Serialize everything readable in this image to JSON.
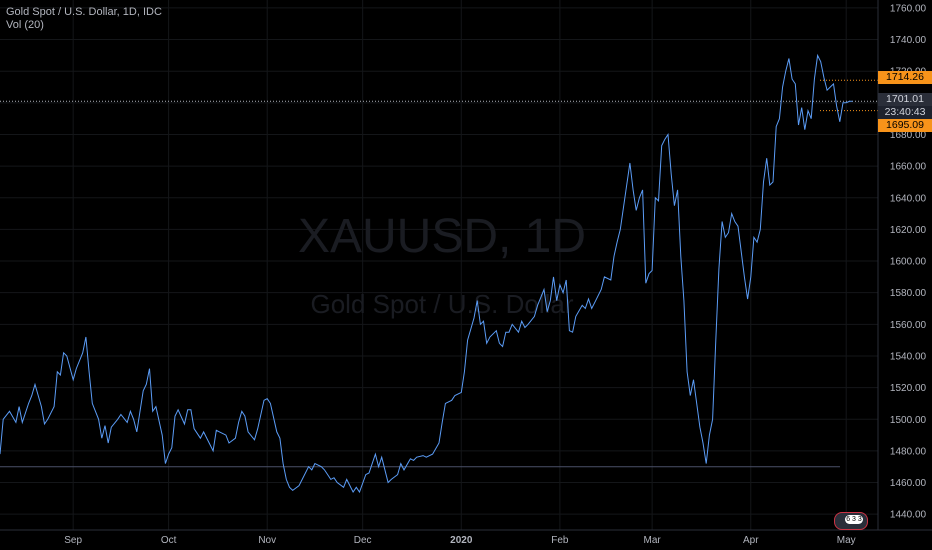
{
  "header": {
    "symbol_line": "Gold Spot / U.S. Dollar, 1D, IDC",
    "indicator_line": "Vol (20)"
  },
  "watermark": {
    "symbol": "XAUUSD, 1D",
    "name": "Gold Spot / U.S. Dollar"
  },
  "price_tags": {
    "top": "1714.26",
    "current": "1701.01",
    "countdown": "23:40:43",
    "bottom": "1695.09"
  },
  "badge_text": "6 3 3",
  "colors": {
    "background": "#000000",
    "line": "#5b9cf6",
    "axis_text": "#b2b5be",
    "accent": "#f7931a"
  },
  "chart_data": {
    "type": "line",
    "title": "Gold Spot / U.S. Dollar, 1D, IDC",
    "ylim": [
      1430,
      1765
    ],
    "y_ticks": [
      1440,
      1460,
      1480,
      1500,
      1520,
      1540,
      1560,
      1580,
      1600,
      1620,
      1640,
      1660,
      1680,
      1700,
      1720,
      1740,
      1760
    ],
    "y_tick_labels": [
      "1440.00",
      "1460.00",
      "1480.00",
      "1500.00",
      "1520.00",
      "1540.00",
      "1560.00",
      "1580.00",
      "1600.00",
      "1620.00",
      "1640.00",
      "1660.00",
      "1680.00",
      "1700.00",
      "1720.00",
      "1740.00",
      "1760.00"
    ],
    "x_start": "2019-08-09",
    "x_end": "2020-05-11",
    "x_ticks": [
      {
        "date": "2019-09-01",
        "label": "Sep",
        "bold": false
      },
      {
        "date": "2019-10-01",
        "label": "Oct",
        "bold": false
      },
      {
        "date": "2019-11-01",
        "label": "Nov",
        "bold": false
      },
      {
        "date": "2019-12-01",
        "label": "Dec",
        "bold": false
      },
      {
        "date": "2020-01-01",
        "label": "2020",
        "bold": true
      },
      {
        "date": "2020-02-01",
        "label": "Feb",
        "bold": false
      },
      {
        "date": "2020-03-01",
        "label": "Mar",
        "bold": false
      },
      {
        "date": "2020-04-01",
        "label": "Apr",
        "bold": false
      },
      {
        "date": "2020-05-01",
        "label": "May",
        "bold": false
      }
    ],
    "horizontal_levels": [
      {
        "value": 1714.26,
        "style": "dotted",
        "color": "#f7931a"
      },
      {
        "value": 1701.01,
        "style": "dotted",
        "color": "#b2b5be"
      },
      {
        "value": 1695.09,
        "style": "dotted",
        "color": "#f7931a"
      },
      {
        "value": 1470,
        "style": "solid",
        "color": "#4a5068"
      }
    ],
    "series": [
      {
        "values": [
          [
            "2019-08-09",
            1478
          ],
          [
            "2019-08-10",
            1500
          ],
          [
            "2019-08-12",
            1505
          ],
          [
            "2019-08-14",
            1498
          ],
          [
            "2019-08-15",
            1508
          ],
          [
            "2019-08-16",
            1498
          ],
          [
            "2019-08-18",
            1510
          ],
          [
            "2019-08-19",
            1515
          ],
          [
            "2019-08-20",
            1522
          ],
          [
            "2019-08-22",
            1508
          ],
          [
            "2019-08-23",
            1497
          ],
          [
            "2019-08-24",
            1500
          ],
          [
            "2019-08-26",
            1508
          ],
          [
            "2019-08-27",
            1530
          ],
          [
            "2019-08-28",
            1528
          ],
          [
            "2019-08-29",
            1542
          ],
          [
            "2019-08-30",
            1540
          ],
          [
            "2019-09-01",
            1525
          ],
          [
            "2019-09-02",
            1532
          ],
          [
            "2019-09-04",
            1542
          ],
          [
            "2019-09-05",
            1552
          ],
          [
            "2019-09-06",
            1530
          ],
          [
            "2019-09-07",
            1510
          ],
          [
            "2019-09-09",
            1500
          ],
          [
            "2019-09-10",
            1488
          ],
          [
            "2019-09-11",
            1496
          ],
          [
            "2019-09-12",
            1485
          ],
          [
            "2019-09-13",
            1495
          ],
          [
            "2019-09-15",
            1500
          ],
          [
            "2019-09-16",
            1503
          ],
          [
            "2019-09-18",
            1498
          ],
          [
            "2019-09-19",
            1505
          ],
          [
            "2019-09-20",
            1500
          ],
          [
            "2019-09-21",
            1492
          ],
          [
            "2019-09-23",
            1518
          ],
          [
            "2019-09-24",
            1522
          ],
          [
            "2019-09-25",
            1532
          ],
          [
            "2019-09-26",
            1505
          ],
          [
            "2019-09-27",
            1508
          ],
          [
            "2019-09-29",
            1490
          ],
          [
            "2019-09-30",
            1472
          ],
          [
            "2019-10-01",
            1478
          ],
          [
            "2019-10-02",
            1482
          ],
          [
            "2019-10-03",
            1502
          ],
          [
            "2019-10-04",
            1506
          ],
          [
            "2019-10-06",
            1497
          ],
          [
            "2019-10-07",
            1506
          ],
          [
            "2019-10-08",
            1506
          ],
          [
            "2019-10-09",
            1494
          ],
          [
            "2019-10-11",
            1488
          ],
          [
            "2019-10-12",
            1492
          ],
          [
            "2019-10-14",
            1484
          ],
          [
            "2019-10-15",
            1480
          ],
          [
            "2019-10-16",
            1493
          ],
          [
            "2019-10-17",
            1492
          ],
          [
            "2019-10-19",
            1490
          ],
          [
            "2019-10-20",
            1485
          ],
          [
            "2019-10-22",
            1488
          ],
          [
            "2019-10-23",
            1498
          ],
          [
            "2019-10-24",
            1505
          ],
          [
            "2019-10-25",
            1502
          ],
          [
            "2019-10-26",
            1492
          ],
          [
            "2019-10-28",
            1487
          ],
          [
            "2019-10-29",
            1494
          ],
          [
            "2019-10-31",
            1512
          ],
          [
            "2019-11-01",
            1513
          ],
          [
            "2019-11-02",
            1510
          ],
          [
            "2019-11-04",
            1492
          ],
          [
            "2019-11-05",
            1488
          ],
          [
            "2019-11-06",
            1472
          ],
          [
            "2019-11-07",
            1462
          ],
          [
            "2019-11-08",
            1457
          ],
          [
            "2019-11-09",
            1455
          ],
          [
            "2019-11-11",
            1458
          ],
          [
            "2019-11-12",
            1462
          ],
          [
            "2019-11-14",
            1470
          ],
          [
            "2019-11-15",
            1468
          ],
          [
            "2019-11-16",
            1472
          ],
          [
            "2019-11-18",
            1470
          ],
          [
            "2019-11-19",
            1468
          ],
          [
            "2019-11-21",
            1462
          ],
          [
            "2019-11-22",
            1463
          ],
          [
            "2019-11-23",
            1460
          ],
          [
            "2019-11-25",
            1457
          ],
          [
            "2019-11-26",
            1462
          ],
          [
            "2019-11-28",
            1454
          ],
          [
            "2019-11-29",
            1457
          ],
          [
            "2019-11-30",
            1454
          ],
          [
            "2019-12-02",
            1465
          ],
          [
            "2019-12-03",
            1466
          ],
          [
            "2019-12-05",
            1478
          ],
          [
            "2019-12-06",
            1470
          ],
          [
            "2019-12-07",
            1476
          ],
          [
            "2019-12-09",
            1460
          ],
          [
            "2019-12-10",
            1462
          ],
          [
            "2019-12-12",
            1465
          ],
          [
            "2019-12-13",
            1472
          ],
          [
            "2019-12-14",
            1468
          ],
          [
            "2019-12-16",
            1475
          ],
          [
            "2019-12-17",
            1474
          ],
          [
            "2019-12-18",
            1476
          ],
          [
            "2019-12-20",
            1477
          ],
          [
            "2019-12-21",
            1476
          ],
          [
            "2019-12-23",
            1478
          ],
          [
            "2019-12-25",
            1485
          ],
          [
            "2019-12-26",
            1498
          ],
          [
            "2019-12-27",
            1510
          ],
          [
            "2019-12-29",
            1512
          ],
          [
            "2019-12-30",
            1515
          ],
          [
            "2020-01-01",
            1517
          ],
          [
            "2020-01-02",
            1530
          ],
          [
            "2020-01-03",
            1550
          ],
          [
            "2020-01-05",
            1564
          ],
          [
            "2020-01-06",
            1575
          ],
          [
            "2020-01-07",
            1560
          ],
          [
            "2020-01-08",
            1562
          ],
          [
            "2020-01-09",
            1548
          ],
          [
            "2020-01-10",
            1552
          ],
          [
            "2020-01-12",
            1556
          ],
          [
            "2020-01-13",
            1548
          ],
          [
            "2020-01-14",
            1546
          ],
          [
            "2020-01-15",
            1555
          ],
          [
            "2020-01-16",
            1555
          ],
          [
            "2020-01-17",
            1560
          ],
          [
            "2020-01-19",
            1555
          ],
          [
            "2020-01-20",
            1562
          ],
          [
            "2020-01-21",
            1558
          ],
          [
            "2020-01-22",
            1560
          ],
          [
            "2020-01-24",
            1565
          ],
          [
            "2020-01-25",
            1572
          ],
          [
            "2020-01-27",
            1582
          ],
          [
            "2020-01-28",
            1568
          ],
          [
            "2020-01-29",
            1575
          ],
          [
            "2020-01-30",
            1590
          ],
          [
            "2020-01-31",
            1575
          ],
          [
            "2020-02-01",
            1585
          ],
          [
            "2020-02-02",
            1580
          ],
          [
            "2020-02-03",
            1588
          ],
          [
            "2020-02-04",
            1556
          ],
          [
            "2020-02-05",
            1555
          ],
          [
            "2020-02-06",
            1565
          ],
          [
            "2020-02-08",
            1572
          ],
          [
            "2020-02-09",
            1570
          ],
          [
            "2020-02-10",
            1576
          ],
          [
            "2020-02-11",
            1570
          ],
          [
            "2020-02-12",
            1574
          ],
          [
            "2020-02-14",
            1582
          ],
          [
            "2020-02-15",
            1590
          ],
          [
            "2020-02-17",
            1588
          ],
          [
            "2020-02-18",
            1603
          ],
          [
            "2020-02-19",
            1612
          ],
          [
            "2020-02-20",
            1620
          ],
          [
            "2020-02-22",
            1648
          ],
          [
            "2020-02-23",
            1662
          ],
          [
            "2020-02-24",
            1645
          ],
          [
            "2020-02-25",
            1632
          ],
          [
            "2020-02-26",
            1640
          ],
          [
            "2020-02-27",
            1645
          ],
          [
            "2020-02-28",
            1586
          ],
          [
            "2020-02-29",
            1592
          ],
          [
            "2020-03-01",
            1594
          ],
          [
            "2020-03-02",
            1640
          ],
          [
            "2020-03-03",
            1638
          ],
          [
            "2020-03-04",
            1673
          ],
          [
            "2020-03-05",
            1677
          ],
          [
            "2020-03-06",
            1680
          ],
          [
            "2020-03-07",
            1655
          ],
          [
            "2020-03-08",
            1635
          ],
          [
            "2020-03-09",
            1645
          ],
          [
            "2020-03-10",
            1603
          ],
          [
            "2020-03-11",
            1575
          ],
          [
            "2020-03-12",
            1530
          ],
          [
            "2020-03-13",
            1515
          ],
          [
            "2020-03-14",
            1525
          ],
          [
            "2020-03-16",
            1495
          ],
          [
            "2020-03-17",
            1485
          ],
          [
            "2020-03-18",
            1472
          ],
          [
            "2020-03-19",
            1490
          ],
          [
            "2020-03-20",
            1500
          ],
          [
            "2020-03-21",
            1550
          ],
          [
            "2020-03-22",
            1595
          ],
          [
            "2020-03-23",
            1625
          ],
          [
            "2020-03-24",
            1615
          ],
          [
            "2020-03-25",
            1618
          ],
          [
            "2020-03-26",
            1630
          ],
          [
            "2020-03-27",
            1625
          ],
          [
            "2020-03-28",
            1622
          ],
          [
            "2020-03-30",
            1590
          ],
          [
            "2020-03-31",
            1576
          ],
          [
            "2020-04-01",
            1590
          ],
          [
            "2020-04-02",
            1615
          ],
          [
            "2020-04-03",
            1612
          ],
          [
            "2020-04-04",
            1620
          ],
          [
            "2020-04-05",
            1650
          ],
          [
            "2020-04-06",
            1665
          ],
          [
            "2020-04-07",
            1648
          ],
          [
            "2020-04-08",
            1650
          ],
          [
            "2020-04-09",
            1685
          ],
          [
            "2020-04-10",
            1690
          ],
          [
            "2020-04-11",
            1710
          ],
          [
            "2020-04-12",
            1720
          ],
          [
            "2020-04-13",
            1728
          ],
          [
            "2020-04-14",
            1715
          ],
          [
            "2020-04-15",
            1712
          ],
          [
            "2020-04-16",
            1686
          ],
          [
            "2020-04-17",
            1697
          ],
          [
            "2020-04-18",
            1683
          ],
          [
            "2020-04-19",
            1695
          ],
          [
            "2020-04-20",
            1690
          ],
          [
            "2020-04-21",
            1715
          ],
          [
            "2020-04-22",
            1730
          ],
          [
            "2020-04-23",
            1726
          ],
          [
            "2020-04-24",
            1716
          ],
          [
            "2020-04-25",
            1708
          ],
          [
            "2020-04-26",
            1710
          ],
          [
            "2020-04-27",
            1712
          ],
          [
            "2020-04-28",
            1698
          ],
          [
            "2020-04-29",
            1688
          ],
          [
            "2020-04-30",
            1700
          ],
          [
            "2020-05-01",
            1700
          ],
          [
            "2020-05-02",
            1701
          ],
          [
            "2020-05-03",
            1701
          ]
        ]
      }
    ],
    "grid": true,
    "legend": "none"
  }
}
